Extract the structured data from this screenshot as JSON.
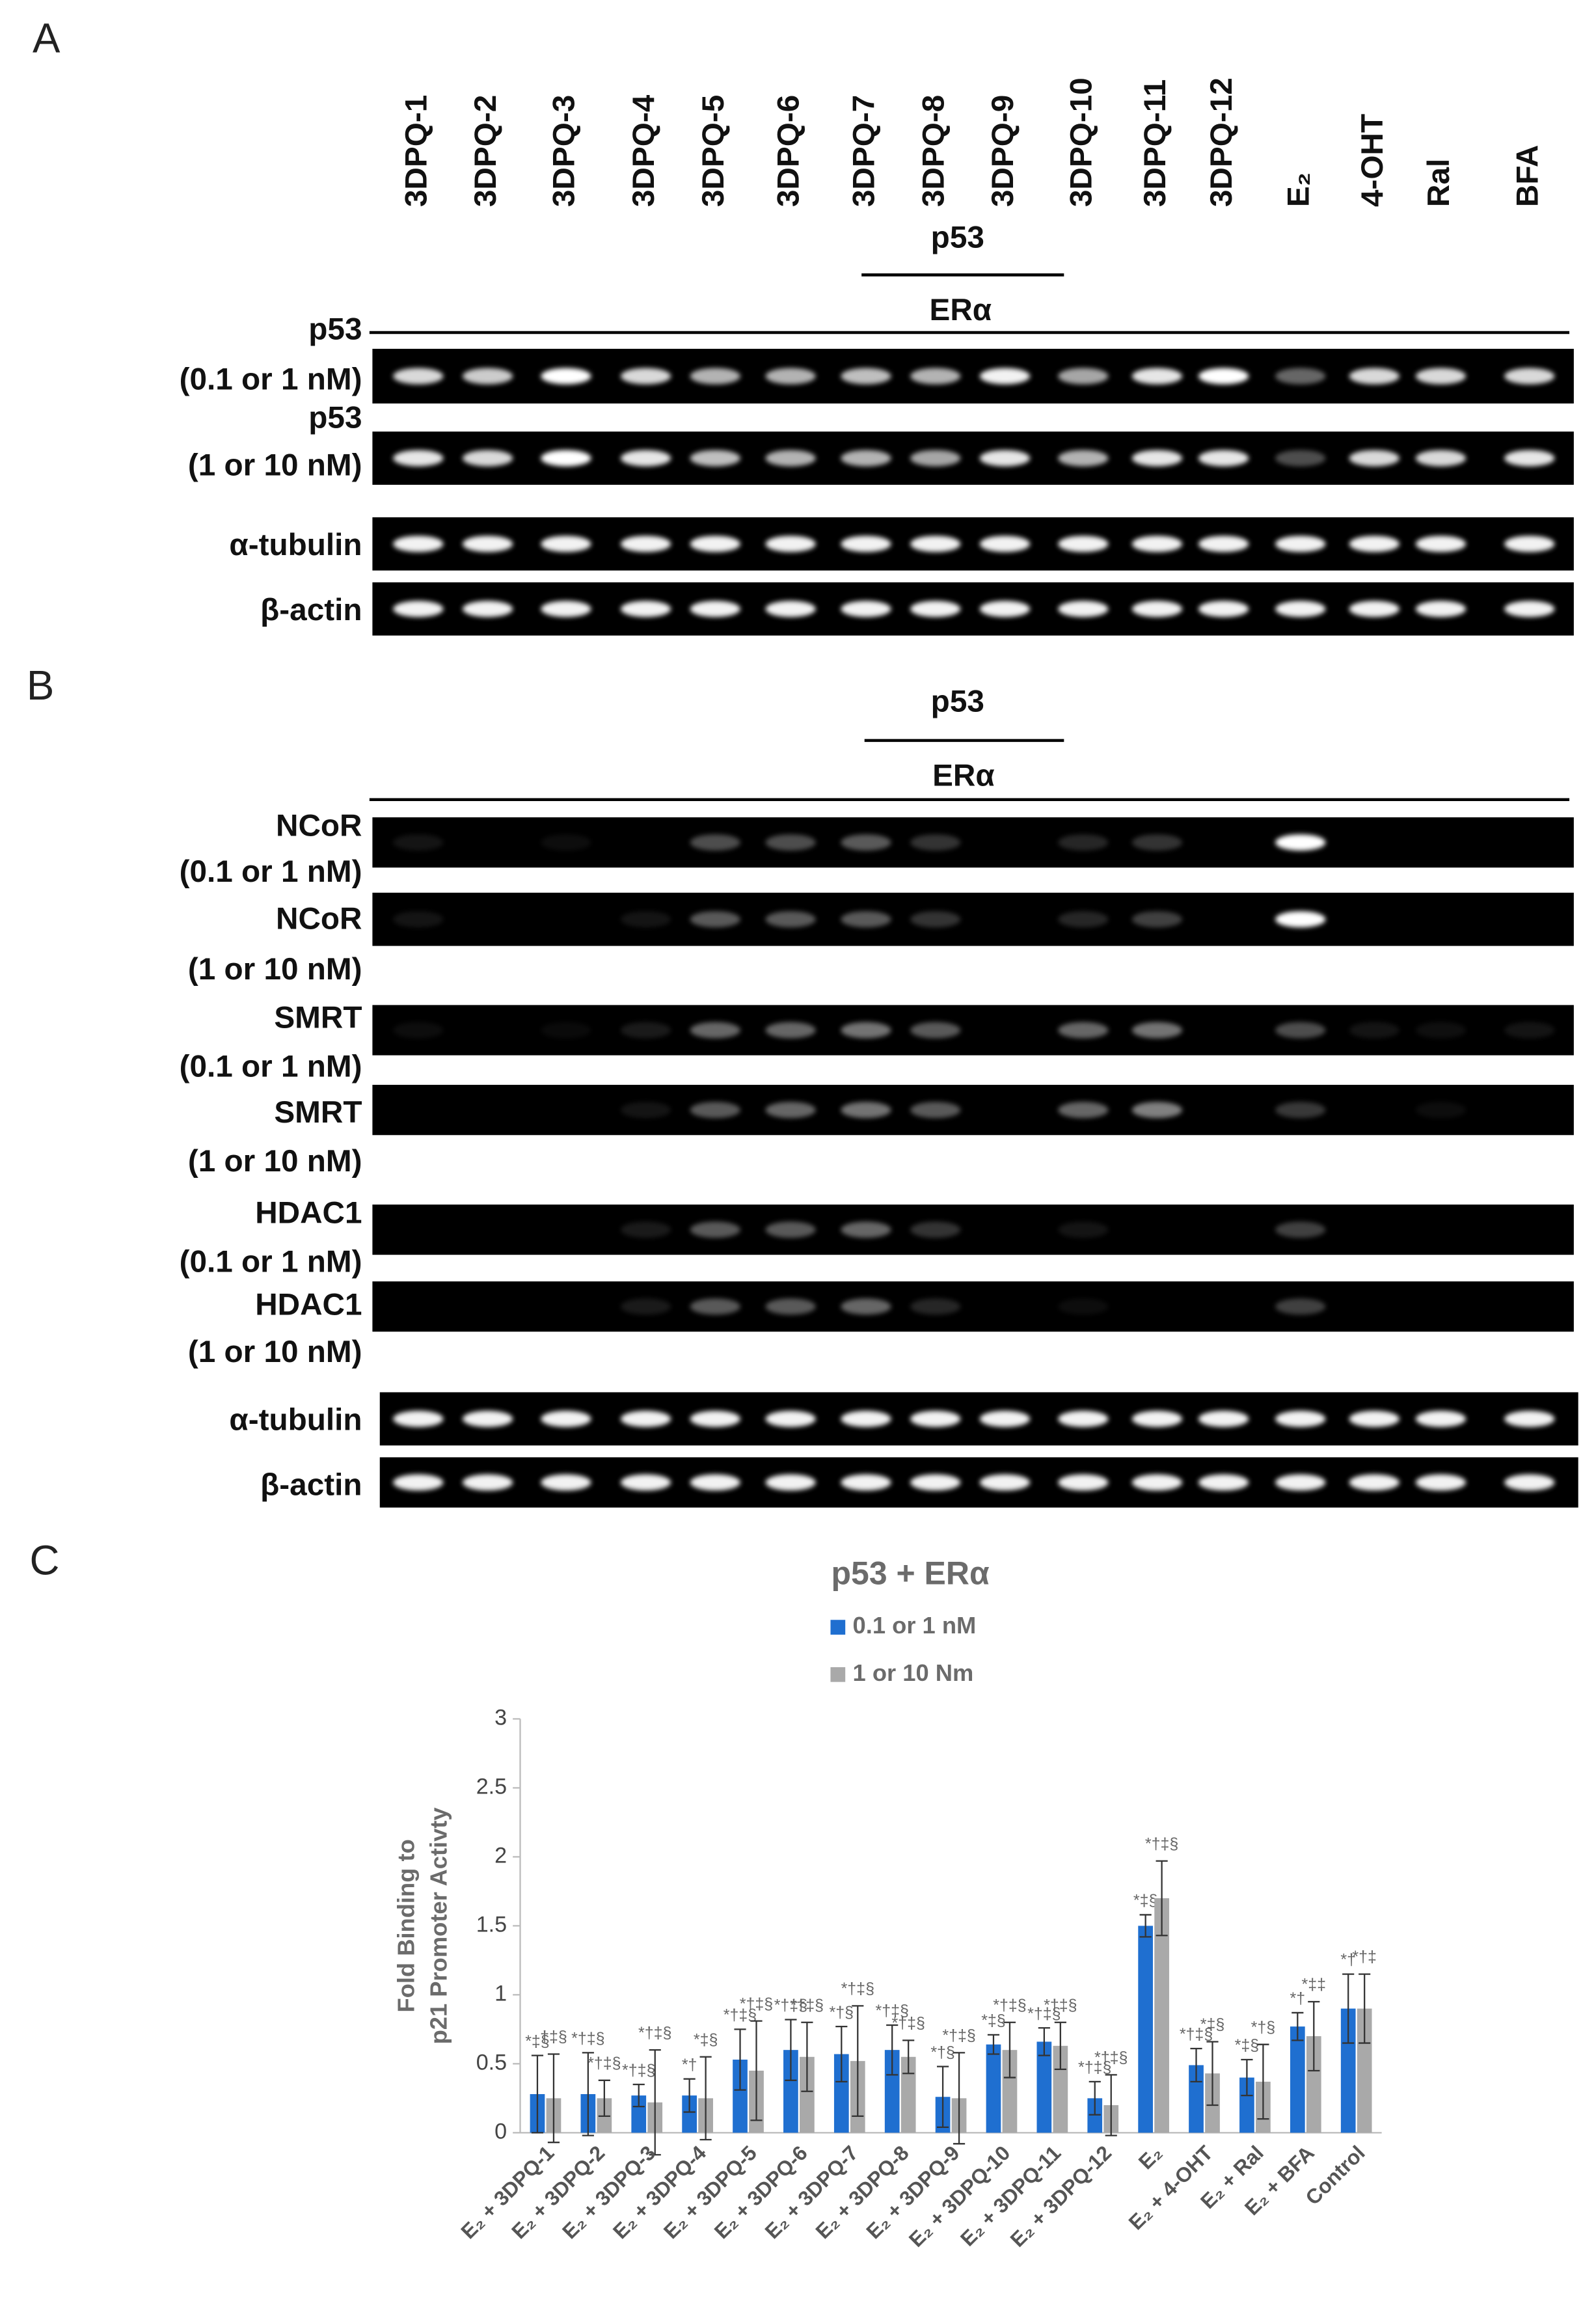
{
  "panel_a": {
    "label": "A",
    "lanes": [
      "3DPQ-1",
      "3DPQ-2",
      "3DPQ-3",
      "3DPQ-4",
      "3DPQ-5",
      "3DPQ-6",
      "3DPQ-7",
      "3DPQ-8",
      "3DPQ-9",
      "3DPQ-10",
      "3DPQ-11",
      "3DPQ-12",
      "E₂",
      "4-OHT",
      "Ral",
      "BFA"
    ],
    "bracket_top": "p53",
    "bracket_bottom": "ERα",
    "rows": [
      [
        "p53",
        "(0.1 or 1 nM)"
      ],
      [
        "p53",
        "(1 or 10 nM)"
      ],
      [
        "α-tubulin"
      ],
      [
        "β-actin"
      ]
    ]
  },
  "panel_b": {
    "label": "B",
    "bracket_top": "p53",
    "bracket_bottom": "ERα",
    "rows": [
      [
        "NCoR",
        "(0.1 or 1 nM)"
      ],
      [
        "NCoR",
        "(1 or 10 nM)"
      ],
      [
        "SMRT",
        "(0.1 or 1 nM)"
      ],
      [
        "SMRT",
        "(1 or 10 nM)"
      ],
      [
        "HDAC1",
        "(0.1 or 1 nM)"
      ],
      [
        "HDAC1",
        "(1 or 10 nM)"
      ],
      [
        "α-tubulin"
      ],
      [
        "β-actin"
      ]
    ]
  },
  "panel_c": {
    "label": "C"
  },
  "chart_data": {
    "type": "bar",
    "title": "p53 + ERα",
    "ylabel": [
      "Fold Binding to",
      "p21 Promoter Activty"
    ],
    "categories": [
      "E₂ + 3DPQ-1",
      "E₂ + 3DPQ-2",
      "E₂ + 3DPQ-3",
      "E₂ + 3DPQ-4",
      "E₂ + 3DPQ-5",
      "E₂ + 3DPQ-6",
      "E₂ + 3DPQ-7",
      "E₂ + 3DPQ-8",
      "E₂ + 3DPQ-9",
      "E₂ + 3DPQ-10",
      "E₂ + 3DPQ-11",
      "E₂ + 3DPQ-12",
      "E₂",
      "E₂ + 4-OHT",
      "E₂ + Ral",
      "E₂ + BFA",
      "Control"
    ],
    "series": [
      {
        "name": "0.1 or 1 nM",
        "color": "#1f6fd0",
        "values": [
          0.28,
          0.28,
          0.27,
          0.27,
          0.53,
          0.6,
          0.57,
          0.6,
          0.26,
          0.64,
          0.66,
          0.25,
          1.5,
          0.49,
          0.4,
          0.77,
          0.9
        ],
        "errors": [
          0.28,
          0.3,
          0.08,
          0.12,
          0.22,
          0.22,
          0.2,
          0.18,
          0.22,
          0.07,
          0.1,
          0.12,
          0.08,
          0.12,
          0.13,
          0.1,
          0.25
        ],
        "labels": [
          "*‡§",
          "*†‡§",
          "*†‡§",
          "*†",
          "*†‡§",
          "*†‡§",
          "*†§",
          "*†‡§",
          "*†§",
          "*‡§",
          "*†‡§",
          "*†‡§",
          "*‡§",
          "*†‡§",
          "*‡§",
          "*†",
          "*†"
        ]
      },
      {
        "name": "1 or 10 Nm",
        "color": "#a9a9a9",
        "values": [
          0.25,
          0.25,
          0.22,
          0.25,
          0.45,
          0.55,
          0.52,
          0.55,
          0.25,
          0.6,
          0.63,
          0.2,
          1.7,
          0.43,
          0.37,
          0.7,
          0.9
        ],
        "errors": [
          0.32,
          0.13,
          0.38,
          0.3,
          0.36,
          0.25,
          0.4,
          0.12,
          0.33,
          0.2,
          0.17,
          0.22,
          0.27,
          0.23,
          0.27,
          0.25,
          0.25
        ],
        "labels": [
          "†‡§",
          "*†‡§",
          "*†‡§",
          "*‡§",
          "*†‡§",
          "*†‡§",
          "*†‡§",
          "*†‡§",
          "*†‡§",
          "*†‡§",
          "*†‡§",
          "*†‡§",
          "*†‡§",
          "*‡§",
          "*†§",
          "*‡‡",
          "*†‡"
        ]
      }
    ],
    "ylim": [
      0,
      3
    ],
    "yticks": [
      0,
      0.5,
      1,
      1.5,
      2,
      2.5,
      3
    ],
    "legend": "top"
  }
}
